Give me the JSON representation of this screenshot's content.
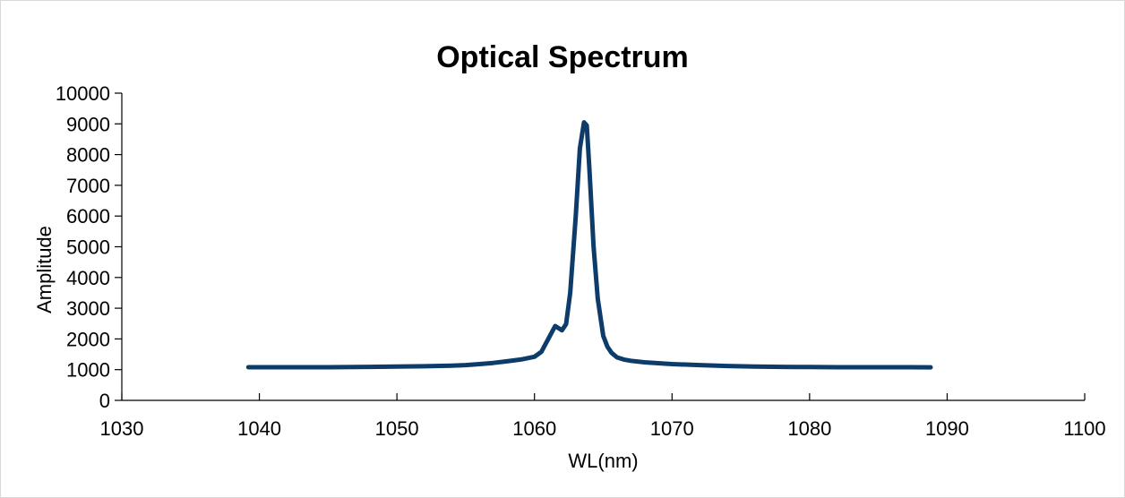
{
  "chart_data": {
    "type": "line",
    "title": "Optical Spectrum",
    "xlabel": "WL(nm)",
    "ylabel": "Amplitude",
    "xlim": [
      1030,
      1100
    ],
    "ylim": [
      0,
      10000
    ],
    "x_ticks": [
      "1030",
      "1040",
      "1050",
      "1060",
      "1070",
      "1080",
      "1090",
      "1100"
    ],
    "y_ticks": [
      "0",
      "1000",
      "2000",
      "3000",
      "4000",
      "5000",
      "6000",
      "7000",
      "8000",
      "9000",
      "10000"
    ],
    "grid": false,
    "legend": "none",
    "series_color": "#0d3c6b",
    "series": [
      {
        "x": [
          1039.2,
          1042,
          1045,
          1048,
          1050,
          1052,
          1054,
          1055,
          1056,
          1057,
          1058,
          1059,
          1060,
          1060.5,
          1061,
          1061.5,
          1062,
          1062.3,
          1062.6,
          1063,
          1063.3,
          1063.6,
          1063.8,
          1064,
          1064.3,
          1064.6,
          1065,
          1065.3,
          1065.6,
          1066,
          1066.5,
          1067,
          1068,
          1069,
          1070,
          1072,
          1074,
          1076,
          1078,
          1080,
          1082,
          1084,
          1086,
          1088.8
        ],
        "y": [
          1080,
          1080,
          1080,
          1090,
          1100,
          1110,
          1130,
          1150,
          1180,
          1220,
          1270,
          1330,
          1420,
          1580,
          2000,
          2420,
          2280,
          2480,
          3500,
          6000,
          8200,
          9050,
          8950,
          7500,
          5000,
          3300,
          2100,
          1750,
          1550,
          1400,
          1330,
          1290,
          1240,
          1210,
          1180,
          1150,
          1120,
          1100,
          1090,
          1085,
          1080,
          1080,
          1080,
          1075
        ]
      }
    ]
  }
}
